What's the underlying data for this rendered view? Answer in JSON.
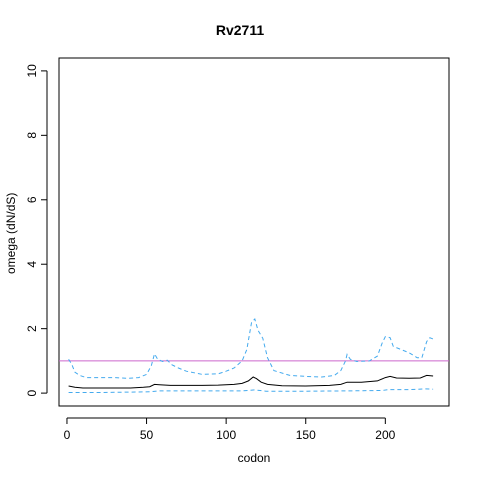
{
  "chart_data": {
    "type": "line",
    "title": "Rv2711",
    "xlabel": "codon",
    "ylabel": "omega (dN/dS)",
    "xlim": [
      -5,
      240
    ],
    "ylim": [
      -0.4,
      10.4
    ],
    "x_ticks": [
      0,
      50,
      100,
      150,
      200
    ],
    "y_ticks": [
      0,
      2,
      4,
      6,
      8,
      10
    ],
    "reference_line": {
      "y": 1,
      "color": "#cc66cc"
    },
    "colors": {
      "mean": "#000000",
      "upper": "#44aaee",
      "lower": "#44aaee"
    },
    "series": [
      {
        "role": "mean",
        "style": "solid",
        "points": [
          [
            1,
            0.22
          ],
          [
            5,
            0.18
          ],
          [
            10,
            0.16
          ],
          [
            20,
            0.16
          ],
          [
            30,
            0.16
          ],
          [
            40,
            0.16
          ],
          [
            48,
            0.18
          ],
          [
            52,
            0.2
          ],
          [
            55,
            0.27
          ],
          [
            58,
            0.26
          ],
          [
            65,
            0.24
          ],
          [
            75,
            0.24
          ],
          [
            85,
            0.24
          ],
          [
            95,
            0.25
          ],
          [
            105,
            0.27
          ],
          [
            110,
            0.3
          ],
          [
            114,
            0.38
          ],
          [
            117,
            0.5
          ],
          [
            119,
            0.45
          ],
          [
            122,
            0.34
          ],
          [
            126,
            0.27
          ],
          [
            135,
            0.23
          ],
          [
            150,
            0.22
          ],
          [
            165,
            0.24
          ],
          [
            172,
            0.27
          ],
          [
            176,
            0.34
          ],
          [
            185,
            0.34
          ],
          [
            195,
            0.38
          ],
          [
            200,
            0.48
          ],
          [
            203,
            0.52
          ],
          [
            207,
            0.47
          ],
          [
            215,
            0.46
          ],
          [
            222,
            0.47
          ],
          [
            226,
            0.55
          ],
          [
            230,
            0.53
          ]
        ]
      },
      {
        "role": "upper",
        "style": "dashed",
        "points": [
          [
            1,
            1.05
          ],
          [
            3,
            0.9
          ],
          [
            5,
            0.65
          ],
          [
            8,
            0.55
          ],
          [
            12,
            0.48
          ],
          [
            20,
            0.48
          ],
          [
            30,
            0.48
          ],
          [
            38,
            0.46
          ],
          [
            45,
            0.48
          ],
          [
            50,
            0.58
          ],
          [
            53,
            0.85
          ],
          [
            55,
            1.22
          ],
          [
            57,
            1.05
          ],
          [
            60,
            0.98
          ],
          [
            63,
            1.02
          ],
          [
            66,
            0.88
          ],
          [
            70,
            0.78
          ],
          [
            75,
            0.68
          ],
          [
            85,
            0.58
          ],
          [
            95,
            0.6
          ],
          [
            100,
            0.68
          ],
          [
            105,
            0.78
          ],
          [
            110,
            1.0
          ],
          [
            113,
            1.35
          ],
          [
            116,
            2.2
          ],
          [
            118,
            2.3
          ],
          [
            120,
            1.95
          ],
          [
            123,
            1.7
          ],
          [
            126,
            1.1
          ],
          [
            130,
            0.7
          ],
          [
            140,
            0.55
          ],
          [
            150,
            0.52
          ],
          [
            160,
            0.5
          ],
          [
            168,
            0.55
          ],
          [
            172,
            0.7
          ],
          [
            175,
            1.0
          ],
          [
            176,
            1.2
          ],
          [
            178,
            1.05
          ],
          [
            182,
            0.98
          ],
          [
            190,
            1.0
          ],
          [
            195,
            1.15
          ],
          [
            198,
            1.55
          ],
          [
            200,
            1.75
          ],
          [
            203,
            1.72
          ],
          [
            205,
            1.45
          ],
          [
            210,
            1.35
          ],
          [
            215,
            1.25
          ],
          [
            220,
            1.1
          ],
          [
            223,
            1.1
          ],
          [
            226,
            1.6
          ],
          [
            228,
            1.72
          ],
          [
            230,
            1.68
          ]
        ]
      },
      {
        "role": "lower",
        "style": "dashed",
        "points": [
          [
            1,
            0.02
          ],
          [
            20,
            0.02
          ],
          [
            40,
            0.03
          ],
          [
            52,
            0.04
          ],
          [
            58,
            0.07
          ],
          [
            80,
            0.07
          ],
          [
            110,
            0.07
          ],
          [
            118,
            0.1
          ],
          [
            125,
            0.06
          ],
          [
            150,
            0.06
          ],
          [
            175,
            0.07
          ],
          [
            198,
            0.08
          ],
          [
            202,
            0.11
          ],
          [
            215,
            0.11
          ],
          [
            225,
            0.13
          ],
          [
            230,
            0.12
          ]
        ]
      }
    ]
  }
}
